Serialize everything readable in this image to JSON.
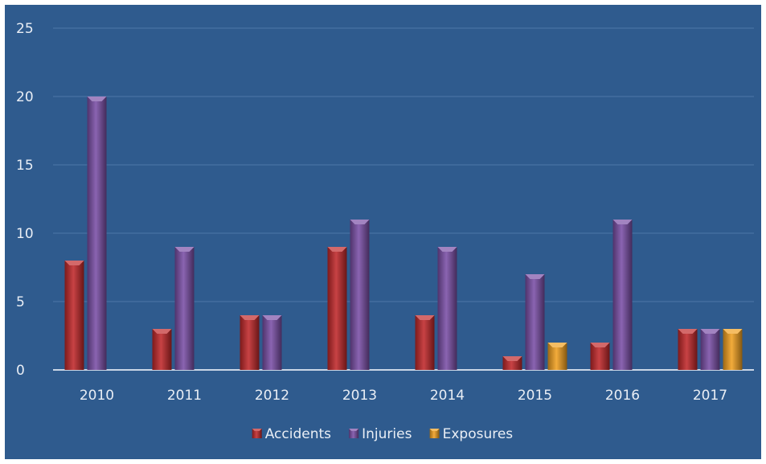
{
  "chart_data": {
    "type": "bar",
    "title": "",
    "xlabel": "",
    "ylabel": "",
    "categories": [
      "2010",
      "2011",
      "2012",
      "2013",
      "2014",
      "2015",
      "2016",
      "2017"
    ],
    "series": [
      {
        "name": "Accidents",
        "values": [
          8,
          3,
          4,
          9,
          4,
          1,
          2,
          3
        ],
        "color": "#c0282a"
      },
      {
        "name": "Injuries",
        "values": [
          20,
          9,
          4,
          11,
          9,
          7,
          11,
          3
        ],
        "color": "#7a4fa6"
      },
      {
        "name": "Exposures",
        "values": [
          null,
          null,
          null,
          null,
          null,
          2,
          null,
          3
        ],
        "color": "#f0a020"
      }
    ],
    "ylim": [
      0,
      25
    ],
    "yticks": [
      "0",
      "5",
      "10",
      "15",
      "20",
      "25"
    ],
    "grid": true,
    "legend": "bottom-center"
  },
  "colors": {
    "background": "#2f5b8e",
    "gridline": "#4c77a8",
    "axis": "#c9d6e6",
    "text": "#e9eef5"
  }
}
